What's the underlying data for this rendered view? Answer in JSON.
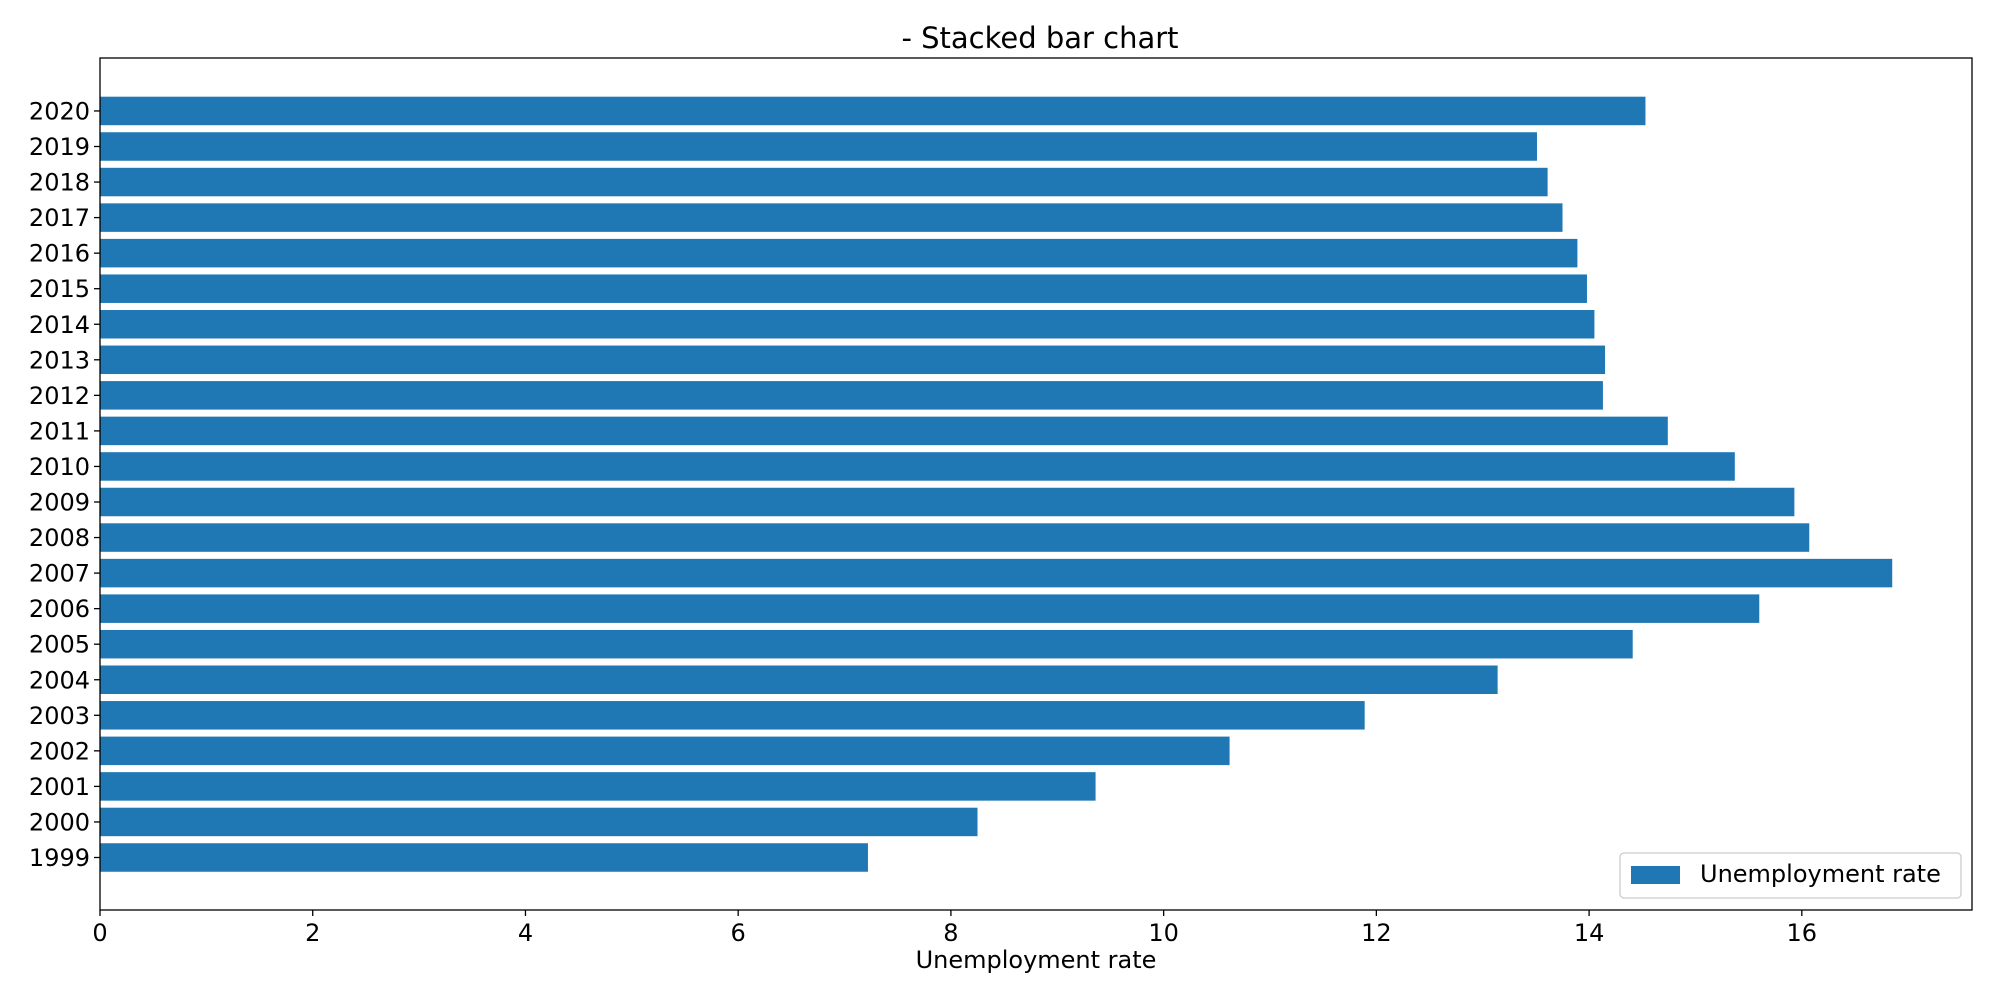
{
  "chart_data": {
    "type": "bar",
    "orientation": "horizontal",
    "title": "- Stacked bar chart",
    "xlabel": "Unemployment rate",
    "ylabel": "",
    "xlim": [
      0,
      17.6
    ],
    "x_ticks": [
      0,
      2,
      4,
      6,
      8,
      10,
      12,
      14,
      16
    ],
    "categories": [
      "1999",
      "2000",
      "2001",
      "2002",
      "2003",
      "2004",
      "2005",
      "2006",
      "2007",
      "2008",
      "2009",
      "2010",
      "2011",
      "2012",
      "2013",
      "2014",
      "2015",
      "2016",
      "2017",
      "2018",
      "2019",
      "2020"
    ],
    "series": [
      {
        "name": "Unemployment rate",
        "color": "#1f77b4",
        "values": [
          7.22,
          8.25,
          9.36,
          10.62,
          11.89,
          13.14,
          14.41,
          15.6,
          16.85,
          16.07,
          15.93,
          15.37,
          14.74,
          14.13,
          14.15,
          14.05,
          13.98,
          13.89,
          13.75,
          13.61,
          13.51,
          14.53
        ]
      }
    ],
    "legend_position": "lower-right",
    "grid": false
  }
}
